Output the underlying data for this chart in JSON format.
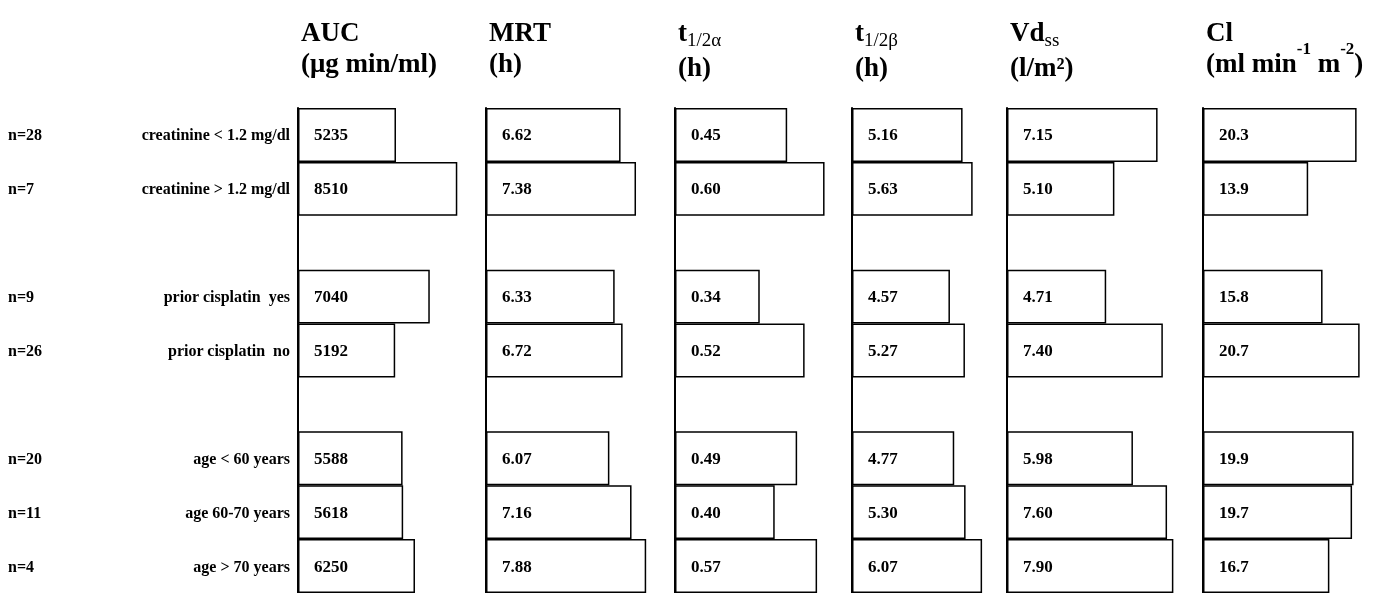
{
  "chart_data": [
    {
      "type": "bar",
      "orientation": "horizontal",
      "title": "AUC",
      "subtitle": "(μg min/ml)",
      "categories": [
        "creatinine < 1.2 mg/dl",
        "creatinine > 1.2 mg/dl",
        null,
        "prior cisplatin  yes",
        "prior cisplatin  no",
        null,
        "age < 60 years",
        "age 60-70 years",
        "age > 70 years"
      ],
      "values": [
        5235,
        8510,
        null,
        7040,
        5192,
        null,
        5588,
        5618,
        6250
      ],
      "value_labels": [
        "5235",
        "8510",
        null,
        "7040",
        "5192",
        null,
        "5588",
        "5618",
        "6250"
      ],
      "color": "#ffffff",
      "tick_labels": "y",
      "annotations": [
        "n=28",
        "n=7",
        "n=9",
        "n=26",
        "n=20",
        "n=11",
        "n=4"
      ]
    },
    {
      "type": "bar",
      "orientation": "horizontal",
      "title": "MRT",
      "subtitle": "(h)",
      "categories": [
        null,
        null,
        null,
        null,
        null,
        null,
        null,
        null,
        null
      ],
      "values": [
        6.62,
        7.38,
        null,
        6.33,
        6.72,
        null,
        6.07,
        7.16,
        7.88
      ],
      "value_labels": [
        "6.62",
        "7.38",
        null,
        "6.33",
        "6.72",
        null,
        "6.07",
        "7.16",
        "7.88"
      ],
      "color": "#ffffff",
      "tick_labels": false
    },
    {
      "type": "bar",
      "orientation": "horizontal",
      "title": "t$_{1/2α}$",
      "subtitle": "(h)",
      "categories": [
        null,
        null,
        null,
        null,
        null,
        null,
        null,
        null,
        null
      ],
      "values": [
        0.45,
        0.6,
        null,
        0.34,
        0.52,
        null,
        0.49,
        0.4,
        0.57
      ],
      "value_labels": [
        "0.45",
        "0.60",
        null,
        "0.34",
        "0.52",
        null,
        "0.49",
        "0.40",
        "0.57"
      ],
      "color": "#ffffff",
      "tick_labels": false
    },
    {
      "type": "bar",
      "orientation": "horizontal",
      "title": "t$_{1/2β}$",
      "subtitle": "(h)",
      "categories": [
        null,
        null,
        null,
        null,
        null,
        null,
        null,
        null,
        null
      ],
      "values": [
        5.16,
        5.63,
        null,
        4.57,
        5.27,
        null,
        4.77,
        5.3,
        6.07
      ],
      "value_labels": [
        "5.16",
        "5.63",
        null,
        "4.57",
        "5.27",
        null,
        "4.77",
        "5.30",
        "6.07"
      ],
      "color": "#ffffff",
      "tick_labels": false
    },
    {
      "type": "bar",
      "orientation": "horizontal",
      "title": "Vd$_{ss}$",
      "subtitle": "(l/m²)",
      "categories": [
        null,
        null,
        null,
        null,
        null,
        null,
        null,
        null,
        null
      ],
      "values": [
        7.15,
        5.1,
        null,
        4.71,
        7.4,
        null,
        5.98,
        7.6,
        7.9
      ],
      "value_labels": [
        "7.15",
        "5.10",
        null,
        "4.71",
        "7.40",
        null,
        "5.98",
        "7.60",
        "7.90"
      ],
      "color": "#ffffff",
      "tick_labels": false
    },
    {
      "type": "bar",
      "orientation": "horizontal",
      "title": "Cl",
      "subtitle": "(ml min$^{-1}$ m$^{-2}$)",
      "categories": [
        null,
        null,
        null,
        null,
        null,
        null,
        null,
        null,
        null
      ],
      "values": [
        20.3,
        13.9,
        null,
        15.8,
        20.7,
        null,
        19.9,
        19.7,
        16.7
      ],
      "value_labels": [
        "20.3",
        "13.9",
        null,
        "15.8",
        "20.7",
        null,
        "19.9",
        "19.7",
        "16.7"
      ],
      "color": "#ffffff",
      "tick_labels": false
    }
  ]
}
